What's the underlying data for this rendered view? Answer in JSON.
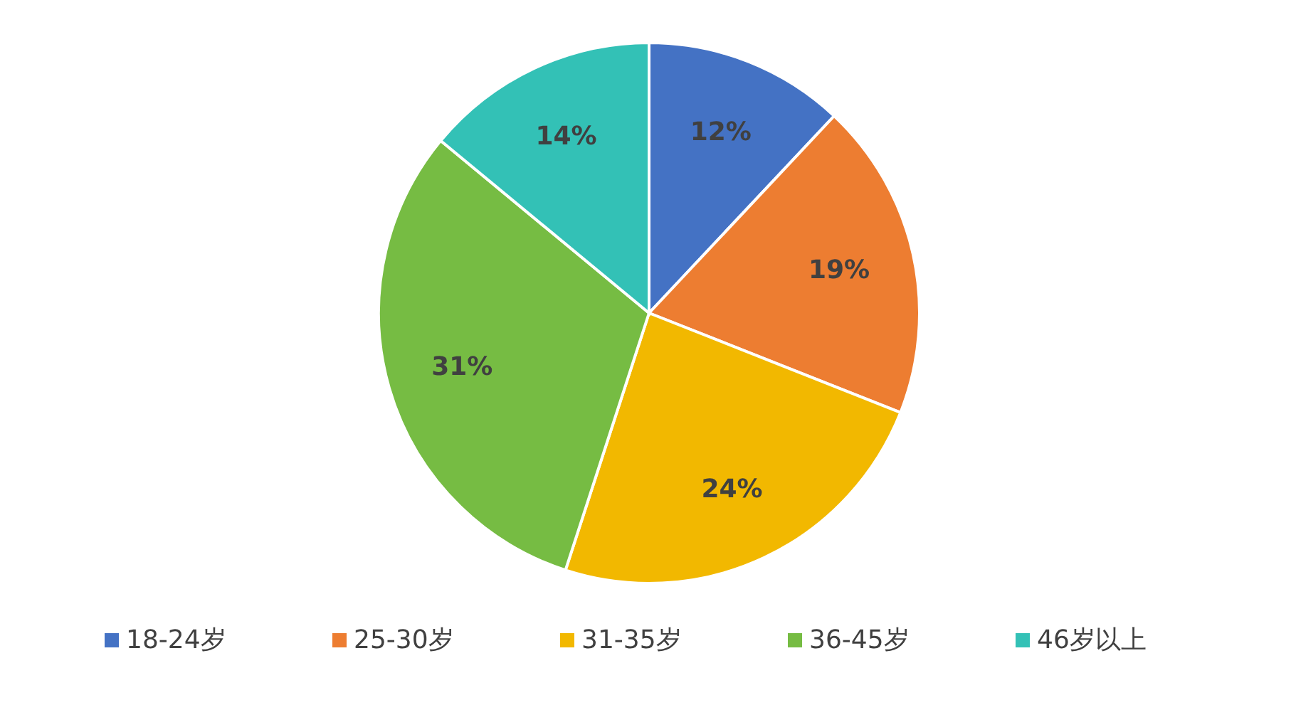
{
  "chart_data": {
    "type": "pie",
    "categories": [
      "18-24岁",
      "25-30岁",
      "31-35岁",
      "36-45岁",
      "46岁以上"
    ],
    "values": [
      12,
      19,
      24,
      31,
      14
    ],
    "colors": [
      "#4472c4",
      "#ed7d31",
      "#f2b800",
      "#76bc43",
      "#33c1b6"
    ],
    "value_labels": [
      "12%",
      "19%",
      "24%",
      "31%",
      "14%"
    ],
    "legend": "bottom"
  }
}
